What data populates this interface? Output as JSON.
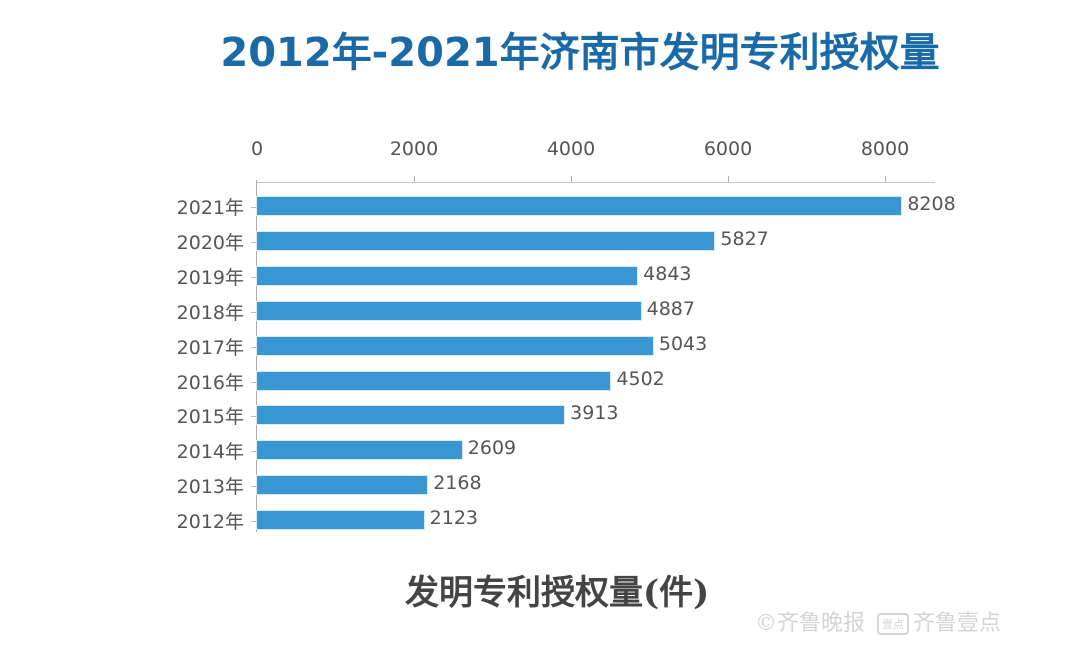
{
  "title": "2012年-2021年济南市发明专利授权量",
  "subtitle": "发明专利授权量(件)",
  "watermark": {
    "copyright_symbol": "©",
    "brand1": "齐鲁晚报",
    "badge": "壹点",
    "brand2": "齐鲁壹点"
  },
  "colors": {
    "bar": "#3b97d3",
    "title": "#1a6aa8"
  },
  "x_ticks": [
    "0",
    "2000",
    "4000",
    "6000",
    "8000"
  ],
  "rows": [
    {
      "label": "2021年",
      "value": "8208"
    },
    {
      "label": "2020年",
      "value": "5827"
    },
    {
      "label": "2019年",
      "value": "4843"
    },
    {
      "label": "2018年",
      "value": "4887"
    },
    {
      "label": "2017年",
      "value": "5043"
    },
    {
      "label": "2016年",
      "value": "4502"
    },
    {
      "label": "2015年",
      "value": "3913"
    },
    {
      "label": "2014年",
      "value": "2609"
    },
    {
      "label": "2013年",
      "value": "2168"
    },
    {
      "label": "2012年",
      "value": "2123"
    }
  ],
  "chart_data": {
    "type": "bar",
    "orientation": "horizontal",
    "title": "2012年-2021年济南市发明专利授权量",
    "xlabel": "发明专利授权量(件)",
    "ylabel": "",
    "categories": [
      "2021年",
      "2020年",
      "2019年",
      "2018年",
      "2017年",
      "2016年",
      "2015年",
      "2014年",
      "2013年",
      "2012年"
    ],
    "values": [
      8208,
      5827,
      4843,
      4887,
      5043,
      4502,
      3913,
      2609,
      2168,
      2123
    ],
    "xlim": [
      0,
      8600
    ],
    "x_ticks": [
      0,
      2000,
      4000,
      6000,
      8000
    ],
    "x_axis_position": "top",
    "grid": false,
    "legend": null,
    "data_labels": true
  }
}
